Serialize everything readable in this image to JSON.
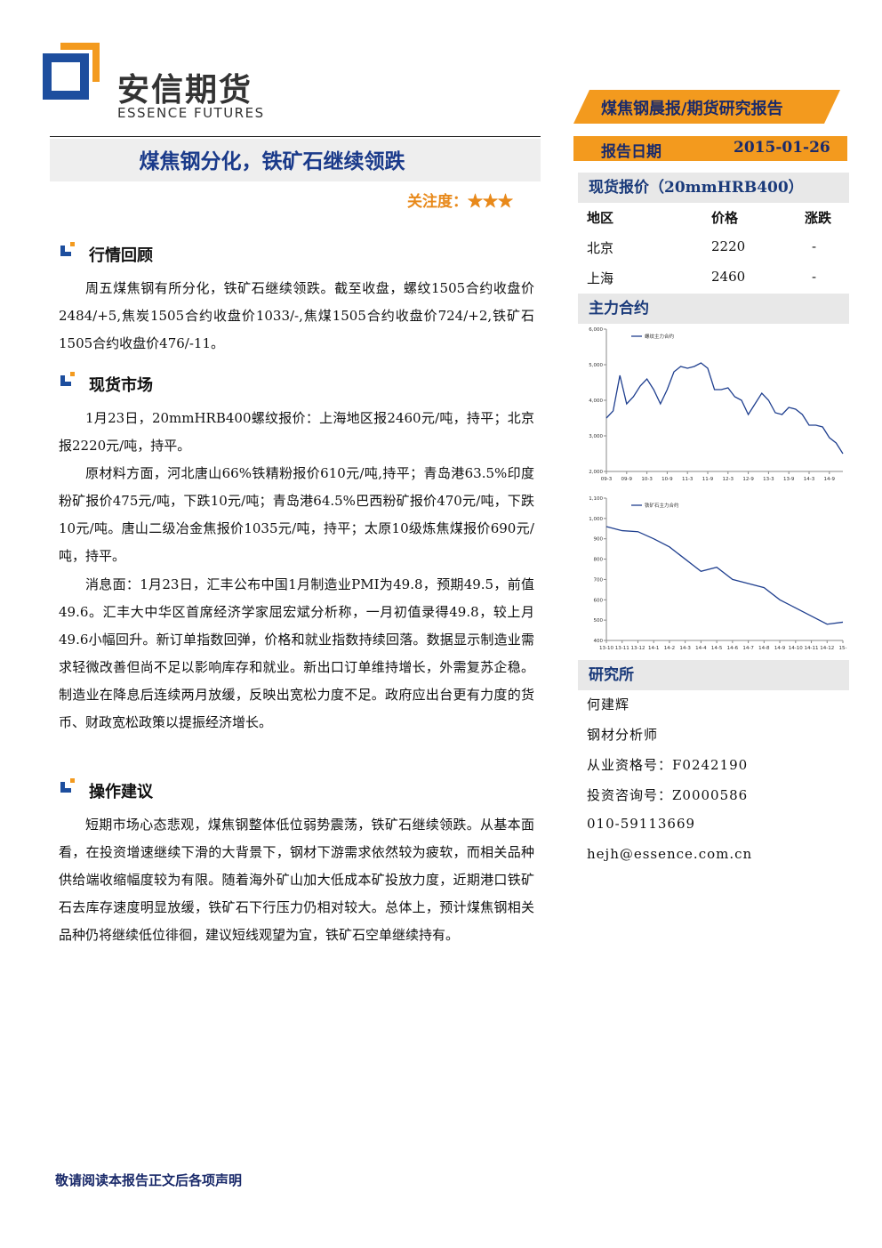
{
  "header": {
    "logo_cn": "安信期货",
    "logo_en": "ESSENCE FUTURES",
    "report_type": "煤焦钢晨报/期货研究报告",
    "date_label": "报告日期",
    "date": "2015-01-26"
  },
  "title": "煤焦钢分化，铁矿石继续领跌",
  "attention": "关注度：★★★",
  "sections": [
    {
      "heading": "行情回顾",
      "paragraphs": [
        "周五煤焦钢有所分化，铁矿石继续领跌。截至收盘，螺纹1505合约收盘价2484/+5,焦炭1505合约收盘价1033/-,焦煤1505合约收盘价724/+2,铁矿石1505合约收盘价476/-11。"
      ]
    },
    {
      "heading": "现货市场",
      "paragraphs": [
        "1月23日，20mmHRB400螺纹报价：上海地区报2460元/吨，持平；北京报2220元/吨，持平。",
        "原材料方面，河北唐山66%铁精粉报价610元/吨,持平；青岛港63.5%印度粉矿报价475元/吨，下跌10元/吨；青岛港64.5%巴西粉矿报价470元/吨，下跌10元/吨。唐山二级冶金焦报价1035元/吨，持平；太原10级炼焦煤报价690元/吨，持平。",
        "消息面：1月23日，汇丰公布中国1月制造业PMI为49.8，预期49.5，前值49.6。汇丰大中华区首席经济学家屈宏斌分析称，一月初值录得49.8，较上月49.6小幅回升。新订单指数回弹，价格和就业指数持续回落。数据显示制造业需求轻微改善但尚不足以影响库存和就业。新出口订单维持增长，外需复苏企稳。制造业在降息后连续两月放缓，反映出宽松力度不足。政府应出台更有力度的货币、财政宽松政策以提振经济增长。"
      ]
    },
    {
      "heading": "操作建议",
      "paragraphs": [
        "短期市场心态悲观，煤焦钢整体低位弱势震荡，铁矿石继续领跌。从基本面看，在投资增速继续下滑的大背景下，钢材下游需求依然较为疲软，而相关品种供给端收缩幅度较为有限。随着海外矿山加大低成本矿投放力度，近期港口铁矿石去库存速度明显放缓，铁矿石下行压力仍相对较大。总体上，预计煤焦钢相关品种仍将继续低位徘徊，建议短线观望为宜，铁矿石空单继续持有。"
      ]
    }
  ],
  "spot": {
    "heading": "现货报价（20mmHRB400）",
    "columns": [
      "地区",
      "价格",
      "涨跌"
    ],
    "rows": [
      [
        "北京",
        "2220",
        "-"
      ],
      [
        "上海",
        "2460",
        "-"
      ]
    ]
  },
  "contracts_heading": "主力合约",
  "chart_data": [
    {
      "type": "line",
      "categories": [
        "09-3",
        null,
        null,
        "09-9",
        null,
        null,
        "10-3",
        null,
        null,
        "10-9",
        null,
        null,
        "11-3",
        null,
        null,
        "11-9",
        null,
        null,
        "12-3",
        null,
        null,
        "12-9",
        null,
        null,
        "13-3",
        null,
        null,
        "13-9",
        null,
        null,
        "14-3",
        null,
        null,
        "14-9",
        null,
        null
      ],
      "series": [
        {
          "name": "螺纹主力合约",
          "color": "#1f3f8f",
          "values": [
            3500,
            3700,
            4700,
            3900,
            4100,
            4400,
            4600,
            4300,
            3900,
            4300,
            4800,
            4950,
            4900,
            4950,
            5050,
            4900,
            4300,
            4300,
            4350,
            4100,
            4000,
            3600,
            3900,
            4200,
            4000,
            3650,
            3600,
            3800,
            3750,
            3600,
            3300,
            3300,
            3250,
            2950,
            2800,
            2500
          ]
        }
      ],
      "ylim": [
        2000,
        6000
      ],
      "yticks": [
        {
          "value": 2000,
          "label": "2,000"
        },
        {
          "value": 3000,
          "label": "3,000"
        },
        {
          "value": 4000,
          "label": "4,000"
        },
        {
          "value": 5000,
          "label": "5,000"
        },
        {
          "value": 6000,
          "label": "6,000"
        }
      ]
    },
    {
      "type": "line",
      "categories": [
        "13-10",
        "13-11",
        "13-12",
        "14-1",
        "14-2",
        "14-3",
        "14-4",
        "14-5",
        "14-6",
        "14-7",
        "14-8",
        "14-9",
        "14-10",
        "14-11",
        "14-12",
        "15-"
      ],
      "series": [
        {
          "name": "铁矿石主力合约",
          "color": "#1f3f8f",
          "values": [
            960,
            940,
            935,
            900,
            860,
            800,
            740,
            760,
            700,
            680,
            660,
            600,
            560,
            520,
            480,
            490
          ]
        }
      ],
      "ylim": [
        400,
        1100
      ],
      "yticks": [
        400,
        500,
        600,
        700,
        800,
        900,
        {
          "value": 1000,
          "label": "1,000"
        },
        {
          "value": 1100,
          "label": "1,100"
        }
      ]
    }
  ],
  "research": {
    "heading": "研究所",
    "lines": [
      "何建辉",
      "钢材分析师",
      "从业资格号：F0242190",
      "投资咨询号：Z0000586",
      "010-59113669",
      "hejh@essence.com.cn"
    ]
  },
  "footer": "敬请阅读本报告正文后各项声明"
}
